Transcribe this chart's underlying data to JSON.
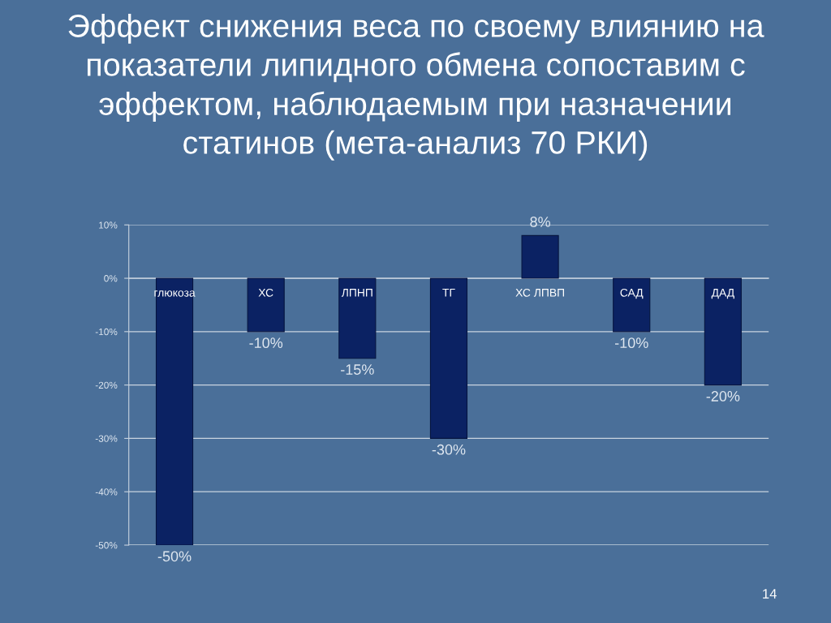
{
  "chart_data": {
    "type": "bar",
    "title": "Эффект снижения веса по своему влиянию на показатели липидного обмена сопоставим с эффектом, наблюдаемым при назначении статинов (мета-анализ 70 РКИ)",
    "categories": [
      "глюкоза",
      "ХС",
      "ЛПНП",
      "ТГ",
      "ХС ЛПВП",
      "САД",
      "ДАД"
    ],
    "values": [
      -50,
      -10,
      -15,
      -30,
      8,
      -10,
      -20
    ],
    "value_labels": [
      "-50%",
      "-10%",
      "-15%",
      "-30%",
      "8%",
      "-10%",
      "-20%"
    ],
    "color": "#0b2263",
    "ylim": [
      -50,
      10
    ],
    "yticks": [
      {
        "value": 10,
        "label": "10%"
      },
      {
        "value": 0,
        "label": "0%"
      },
      {
        "value": -10,
        "label": "-10%"
      },
      {
        "value": -20,
        "label": "-20%"
      },
      {
        "value": -30,
        "label": "-30%"
      },
      {
        "value": -40,
        "label": "-40%"
      },
      {
        "value": -50,
        "label": "-50%"
      }
    ],
    "grid": "y",
    "annotations": [
      "14"
    ]
  }
}
